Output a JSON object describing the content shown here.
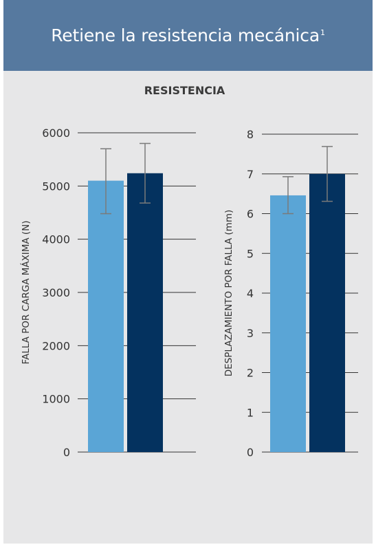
{
  "header": {
    "title": "Retiene la resistencia mecánica",
    "superscript": "1"
  },
  "section_title": "RESISTENCIA",
  "colors": {
    "header_bg": "#56799f",
    "panel_bg": "#e7e7e8",
    "series_light": "#5aa5d6",
    "series_dark": "#04325f",
    "error_bar": "#7a7a7a",
    "grid": "#333333"
  },
  "chart_data": [
    {
      "type": "bar",
      "title": "",
      "ylabel": "FALLA POR CARGA MÁXIMA (N)",
      "ylim": [
        0,
        6000
      ],
      "yticks": [
        "0",
        "1000",
        "2000",
        "3000",
        "4000",
        "5000",
        "6000"
      ],
      "grid": true,
      "series": [
        {
          "values": [
            5100
          ],
          "error": [
            [
              4480,
              5700
            ]
          ],
          "color": "#5aa5d6"
        },
        {
          "values": [
            5240
          ],
          "error": [
            [
              4680,
              5800
            ]
          ],
          "color": "#04325f"
        }
      ]
    },
    {
      "type": "bar",
      "title": "",
      "ylabel": "DESPLAZAMIENTO POR FALLA (mm)",
      "ylim": [
        0,
        8
      ],
      "yticks": [
        "0",
        "1",
        "2",
        "3",
        "4",
        "5",
        "6",
        "7",
        "8"
      ],
      "grid": true,
      "series": [
        {
          "values": [
            6.46
          ],
          "error": [
            [
              6.0,
              6.93
            ]
          ],
          "color": "#5aa5d6"
        },
        {
          "values": [
            7.0
          ],
          "error": [
            [
              6.31,
              7.69
            ]
          ],
          "color": "#04325f"
        }
      ]
    }
  ]
}
